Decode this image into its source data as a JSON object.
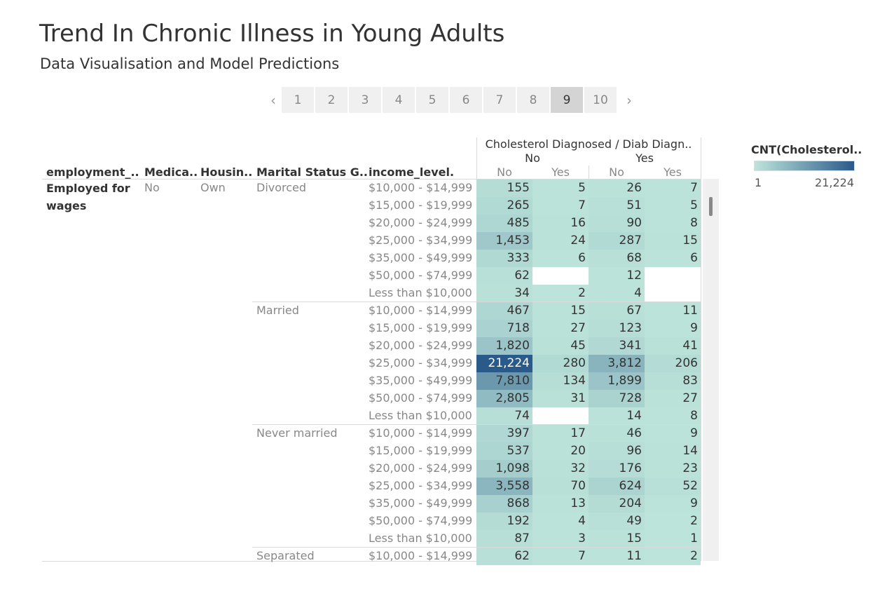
{
  "title": "Trend In Chronic Illness in Young Adults",
  "subtitle": "Data Visualisation and Model Predictions",
  "pager": {
    "prev_icon": "‹",
    "next_icon": "›",
    "pages": [
      "1",
      "2",
      "3",
      "4",
      "5",
      "6",
      "7",
      "8",
      "9",
      "10"
    ],
    "active_page": "9"
  },
  "table": {
    "row_headers": [
      "employment_..",
      "Medica..",
      "Housin..",
      "Marital Status G..",
      "income_level."
    ],
    "col_header_line1": "Cholesterol Diagnosed  / Diab Diagn..",
    "col_groups": [
      "No",
      "Yes"
    ],
    "sub_cols": [
      "No",
      "Yes",
      "No",
      "Yes"
    ],
    "employment": "Employed for wages",
    "medicare": "No",
    "housing": "Own",
    "marital_groups": [
      {
        "label": "Divorced",
        "rows": [
          {
            "income": "$10,000 - $14,999",
            "values": [
              "155",
              "5",
              "26",
              "7"
            ]
          },
          {
            "income": "$15,000 - $19,999",
            "values": [
              "265",
              "7",
              "51",
              "5"
            ]
          },
          {
            "income": "$20,000 - $24,999",
            "values": [
              "485",
              "16",
              "90",
              "8"
            ]
          },
          {
            "income": "$25,000 - $34,999",
            "values": [
              "1,453",
              "24",
              "287",
              "15"
            ]
          },
          {
            "income": "$35,000 - $49,999",
            "values": [
              "333",
              "6",
              "68",
              "6"
            ]
          },
          {
            "income": "$50,000 - $74,999",
            "values": [
              "62",
              "",
              "12",
              ""
            ]
          },
          {
            "income": "Less than $10,000",
            "values": [
              "34",
              "2",
              "4",
              ""
            ]
          }
        ]
      },
      {
        "label": "Married",
        "rows": [
          {
            "income": "$10,000 - $14,999",
            "values": [
              "467",
              "15",
              "67",
              "11"
            ]
          },
          {
            "income": "$15,000 - $19,999",
            "values": [
              "718",
              "27",
              "123",
              "9"
            ]
          },
          {
            "income": "$20,000 - $24,999",
            "values": [
              "1,820",
              "45",
              "341",
              "41"
            ]
          },
          {
            "income": "$25,000 - $34,999",
            "values": [
              "21,224",
              "280",
              "3,812",
              "206"
            ]
          },
          {
            "income": "$35,000 - $49,999",
            "values": [
              "7,810",
              "134",
              "1,899",
              "83"
            ]
          },
          {
            "income": "$50,000 - $74,999",
            "values": [
              "2,805",
              "31",
              "728",
              "27"
            ]
          },
          {
            "income": "Less than $10,000",
            "values": [
              "74",
              "",
              "14",
              "8"
            ]
          }
        ]
      },
      {
        "label": "Never married",
        "rows": [
          {
            "income": "$10,000 - $14,999",
            "values": [
              "397",
              "17",
              "46",
              "9"
            ]
          },
          {
            "income": "$15,000 - $19,999",
            "values": [
              "537",
              "20",
              "96",
              "14"
            ]
          },
          {
            "income": "$20,000 - $24,999",
            "values": [
              "1,098",
              "32",
              "176",
              "23"
            ]
          },
          {
            "income": "$25,000 - $34,999",
            "values": [
              "3,558",
              "70",
              "624",
              "52"
            ]
          },
          {
            "income": "$35,000 - $49,999",
            "values": [
              "868",
              "13",
              "204",
              "9"
            ]
          },
          {
            "income": "$50,000 - $74,999",
            "values": [
              "192",
              "4",
              "49",
              "2"
            ]
          },
          {
            "income": "Less than $10,000",
            "values": [
              "87",
              "3",
              "15",
              "1"
            ]
          }
        ]
      },
      {
        "label": "Separated",
        "rows": [
          {
            "income": "$10,000 - $14,999",
            "values": [
              "62",
              "7",
              "11",
              "2"
            ]
          }
        ]
      }
    ]
  },
  "legend": {
    "title": "CNT(Cholesterol..",
    "min": "1",
    "max": "21,224",
    "min_value": 1,
    "max_value": 21224,
    "color_low": "#bde4da",
    "color_high": "#2a5a8a"
  }
}
